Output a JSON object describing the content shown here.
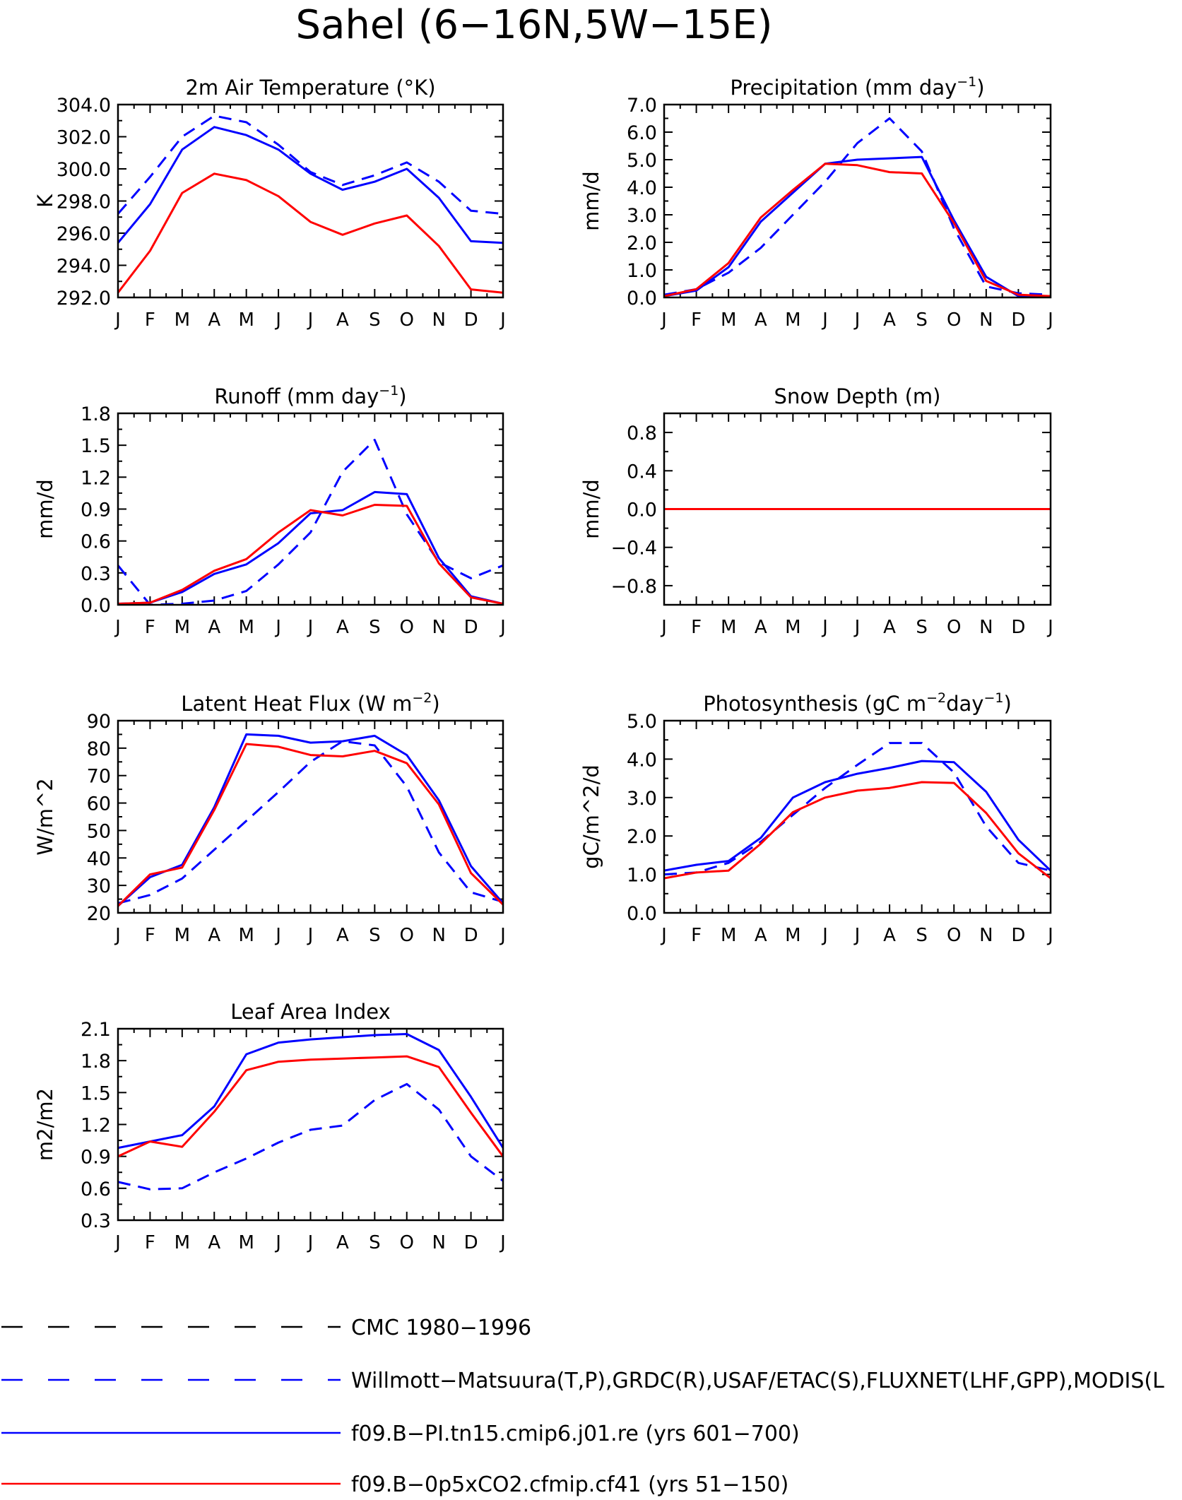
{
  "title": "Sahel (6−16N,5W−15E)",
  "months": [
    "J",
    "F",
    "M",
    "A",
    "M",
    "J",
    "J",
    "A",
    "S",
    "O",
    "N",
    "D",
    "J"
  ],
  "colors": {
    "obs": "#0000ff",
    "cmc": "#000000",
    "pi": "#0000ff",
    "co2": "#ff0000",
    "axis": "#000000"
  },
  "legend": [
    {
      "label": "CMC 1980−1996",
      "color": "#000000",
      "dash": true
    },
    {
      "label": "Willmott−Matsuura(T,P),GRDC(R),USAF/ETAC(S),FLUXNET(LHF,GPP),MODIS(L",
      "color": "#0000ff",
      "dash": true
    },
    {
      "label": "f09.B−PI.tn15.cmip6.j01.re (yrs 601−700)",
      "color": "#0000ff",
      "dash": false
    },
    {
      "label": "f09.B−0p5xCO2.cfmip.cf41 (yrs 51−150)",
      "color": "#ff0000",
      "dash": false
    }
  ],
  "chart_data": [
    {
      "type": "line",
      "title_parts": [
        "2m Air Temperature (°K)"
      ],
      "ylabel": "K",
      "x": [
        "J",
        "F",
        "M",
        "A",
        "M",
        "J",
        "J",
        "A",
        "S",
        "O",
        "N",
        "D",
        "J"
      ],
      "ylim": [
        292,
        304
      ],
      "yticks": [
        "292.0",
        "294.0",
        "296.0",
        "298.0",
        "300.0",
        "302.0",
        "304.0"
      ],
      "ytick_values": [
        292,
        294,
        296,
        298,
        300,
        302,
        304
      ],
      "series": [
        {
          "name": "Willmott−Matsuura(T,P),GRDC(R),USAF/ETAC(S),FLUXNET(LHF,GPP),MODIS(L",
          "color": "#0000ff",
          "dash": true,
          "values": [
            297.2,
            299.5,
            302.0,
            303.3,
            302.9,
            301.5,
            299.8,
            299.0,
            299.6,
            300.4,
            299.2,
            297.4,
            297.2
          ]
        },
        {
          "name": "f09.B−PI.tn15.cmip6.j01.re (yrs 601−700)",
          "color": "#0000ff",
          "dash": false,
          "values": [
            295.4,
            297.8,
            301.2,
            302.6,
            302.1,
            301.2,
            299.7,
            298.7,
            299.2,
            300.0,
            298.2,
            295.5,
            295.4
          ]
        },
        {
          "name": "f09.B−0p5xCO2.cfmip.cf41 (yrs 51−150)",
          "color": "#ff0000",
          "dash": false,
          "values": [
            292.3,
            294.9,
            298.5,
            299.7,
            299.3,
            298.3,
            296.7,
            295.9,
            296.6,
            297.1,
            295.2,
            292.5,
            292.3
          ]
        }
      ]
    },
    {
      "type": "line",
      "title_parts": [
        "Precipitation (mm day",
        "−1",
        ")"
      ],
      "ylabel": "mm/d",
      "x": [
        "J",
        "F",
        "M",
        "A",
        "M",
        "J",
        "J",
        "A",
        "S",
        "O",
        "N",
        "D",
        "J"
      ],
      "ylim": [
        0,
        7
      ],
      "yticks": [
        "0.0",
        "1.0",
        "2.0",
        "3.0",
        "4.0",
        "5.0",
        "6.0",
        "7.0"
      ],
      "ytick_values": [
        0,
        1,
        2,
        3,
        4,
        5,
        6,
        7
      ],
      "series": [
        {
          "name": "Willmott−Matsuura(T,P),GRDC(R),USAF/ETAC(S),FLUXNET(LHF,GPP),MODIS(L",
          "color": "#0000ff",
          "dash": true,
          "values": [
            0.1,
            0.3,
            0.9,
            1.8,
            3.0,
            4.2,
            5.6,
            6.5,
            5.3,
            2.5,
            0.4,
            0.15,
            0.1
          ]
        },
        {
          "name": "f09.B−PI.tn15.cmip6.j01.re (yrs 601−700)",
          "color": "#0000ff",
          "dash": false,
          "values": [
            0.05,
            0.25,
            1.1,
            2.75,
            3.8,
            4.85,
            5.0,
            5.05,
            5.1,
            2.8,
            0.75,
            0.05,
            0.05
          ]
        },
        {
          "name": "f09.B−0p5xCO2.cfmip.cf41 (yrs 51−150)",
          "color": "#ff0000",
          "dash": false,
          "values": [
            0.05,
            0.3,
            1.25,
            2.9,
            3.9,
            4.85,
            4.8,
            4.55,
            4.5,
            2.7,
            0.6,
            0.1,
            0.05
          ]
        }
      ]
    },
    {
      "type": "line",
      "title_parts": [
        "Runoff (mm day",
        "−1",
        ")"
      ],
      "ylabel": "mm/d",
      "x": [
        "J",
        "F",
        "M",
        "A",
        "M",
        "J",
        "J",
        "A",
        "S",
        "O",
        "N",
        "D",
        "J"
      ],
      "ylim": [
        0,
        1.8
      ],
      "yticks": [
        "0.0",
        "0.3",
        "0.6",
        "0.9",
        "1.2",
        "1.5",
        "1.8"
      ],
      "ytick_values": [
        0,
        0.3,
        0.6,
        0.9,
        1.2,
        1.5,
        1.8
      ],
      "series": [
        {
          "name": "Willmott−Matsuura(T,P),GRDC(R),USAF/ETAC(S),FLUXNET(LHF,GPP),MODIS(L",
          "color": "#0000ff",
          "dash": true,
          "values": [
            0.37,
            0.0,
            0.01,
            0.04,
            0.13,
            0.38,
            0.68,
            1.25,
            1.55,
            0.85,
            0.4,
            0.25,
            0.37
          ]
        },
        {
          "name": "f09.B−PI.tn15.cmip6.j01.re (yrs 601−700)",
          "color": "#0000ff",
          "dash": false,
          "values": [
            0.01,
            0.02,
            0.12,
            0.29,
            0.38,
            0.58,
            0.86,
            0.89,
            1.06,
            1.04,
            0.44,
            0.08,
            0.01
          ]
        },
        {
          "name": "f09.B−0p5xCO2.cfmip.cf41 (yrs 51−150)",
          "color": "#ff0000",
          "dash": false,
          "values": [
            0.01,
            0.02,
            0.14,
            0.32,
            0.43,
            0.68,
            0.89,
            0.84,
            0.94,
            0.93,
            0.39,
            0.07,
            0.01
          ]
        }
      ]
    },
    {
      "type": "line",
      "title_parts": [
        "Snow Depth (m)"
      ],
      "ylabel": "mm/d",
      "x": [
        "J",
        "F",
        "M",
        "A",
        "M",
        "J",
        "J",
        "A",
        "S",
        "O",
        "N",
        "D",
        "J"
      ],
      "ylim": [
        -1,
        1
      ],
      "yticks": [
        "−0.8",
        "−0.4",
        "0.0",
        "0.4",
        "0.8"
      ],
      "ytick_values": [
        -0.8,
        -0.4,
        0.0,
        0.4,
        0.8
      ],
      "series": [
        {
          "name": "Willmott−Matsuura(T,P),GRDC(R),USAF/ETAC(S),FLUXNET(LHF,GPP),MODIS(L",
          "color": "#0000ff",
          "dash": true,
          "values": [
            0,
            0,
            0,
            0,
            0,
            0,
            0,
            0,
            0,
            0,
            0,
            0,
            0
          ]
        },
        {
          "name": "f09.B−PI.tn15.cmip6.j01.re (yrs 601−700)",
          "color": "#0000ff",
          "dash": false,
          "values": [
            0,
            0,
            0,
            0,
            0,
            0,
            0,
            0,
            0,
            0,
            0,
            0,
            0
          ]
        },
        {
          "name": "f09.B−0p5xCO2.cfmip.cf41 (yrs 51−150)",
          "color": "#ff0000",
          "dash": false,
          "values": [
            0,
            0,
            0,
            0,
            0,
            0,
            0,
            0,
            0,
            0,
            0,
            0,
            0
          ]
        }
      ]
    },
    {
      "type": "line",
      "title_parts": [
        "Latent Heat Flux (W m",
        "−2",
        ")"
      ],
      "ylabel": "W/m^2",
      "x": [
        "J",
        "F",
        "M",
        "A",
        "M",
        "J",
        "J",
        "A",
        "S",
        "O",
        "N",
        "D",
        "J"
      ],
      "ylim": [
        20,
        90
      ],
      "yticks": [
        "20",
        "30",
        "40",
        "50",
        "60",
        "70",
        "80",
        "90"
      ],
      "ytick_values": [
        20,
        30,
        40,
        50,
        60,
        70,
        80,
        90
      ],
      "series": [
        {
          "name": "Willmott−Matsuura(T,P),GRDC(R),USAF/ETAC(S),FLUXNET(LHF,GPP),MODIS(L",
          "color": "#0000ff",
          "dash": true,
          "values": [
            23.5,
            26.5,
            32.5,
            43.0,
            53.5,
            64.0,
            75.0,
            82.5,
            81.0,
            66.0,
            42.0,
            27.5,
            24.0
          ]
        },
        {
          "name": "f09.B−PI.tn15.cmip6.j01.re (yrs 601−700)",
          "color": "#0000ff",
          "dash": false,
          "values": [
            22.5,
            33.0,
            37.5,
            58.5,
            85.0,
            84.5,
            82.0,
            82.5,
            84.5,
            77.5,
            61.0,
            37.0,
            23.5
          ]
        },
        {
          "name": "f09.B−0p5xCO2.cfmip.cf41 (yrs 51−150)",
          "color": "#ff0000",
          "dash": false,
          "values": [
            22.5,
            34.0,
            36.5,
            57.5,
            81.5,
            80.5,
            77.5,
            77.0,
            79.0,
            74.5,
            59.5,
            34.5,
            23.0
          ]
        }
      ]
    },
    {
      "type": "line",
      "title_parts": [
        "Photosynthesis (gC m",
        "−2",
        "day",
        "−1",
        ")"
      ],
      "ylabel": "gC/m^2/d",
      "x": [
        "J",
        "F",
        "M",
        "A",
        "M",
        "J",
        "J",
        "A",
        "S",
        "O",
        "N",
        "D",
        "J"
      ],
      "ylim": [
        0,
        5
      ],
      "yticks": [
        "0.0",
        "1.0",
        "2.0",
        "3.0",
        "4.0",
        "5.0"
      ],
      "ytick_values": [
        0,
        1,
        2,
        3,
        4,
        5
      ],
      "series": [
        {
          "name": "Willmott−Matsuura(T,P),GRDC(R),USAF/ETAC(S),FLUXNET(LHF,GPP),MODIS(L",
          "color": "#0000ff",
          "dash": true,
          "values": [
            1.0,
            1.05,
            1.3,
            1.85,
            2.55,
            3.25,
            3.85,
            4.42,
            4.42,
            3.65,
            2.25,
            1.3,
            1.1
          ]
        },
        {
          "name": "f09.B−PI.tn15.cmip6.j01.re (yrs 601−700)",
          "color": "#0000ff",
          "dash": false,
          "values": [
            1.1,
            1.25,
            1.35,
            1.95,
            3.0,
            3.4,
            3.62,
            3.77,
            3.95,
            3.92,
            3.15,
            1.9,
            1.1
          ]
        },
        {
          "name": "f09.B−0p5xCO2.cfmip.cf41 (yrs 51−150)",
          "color": "#ff0000",
          "dash": false,
          "values": [
            0.9,
            1.05,
            1.1,
            1.8,
            2.62,
            3.0,
            3.18,
            3.25,
            3.4,
            3.38,
            2.6,
            1.55,
            0.9
          ]
        }
      ]
    },
    {
      "type": "line",
      "title_parts": [
        "Leaf Area Index"
      ],
      "ylabel": "m2/m2",
      "x": [
        "J",
        "F",
        "M",
        "A",
        "M",
        "J",
        "J",
        "A",
        "S",
        "O",
        "N",
        "D",
        "J"
      ],
      "ylim": [
        0.3,
        2.1
      ],
      "yticks": [
        "0.3",
        "0.6",
        "0.9",
        "1.2",
        "1.5",
        "1.8",
        "2.1"
      ],
      "ytick_values": [
        0.3,
        0.6,
        0.9,
        1.2,
        1.5,
        1.8,
        2.1
      ],
      "series": [
        {
          "name": "Willmott−Matsuura(T,P),GRDC(R),USAF/ETAC(S),FLUXNET(LHF,GPP),MODIS(L",
          "color": "#0000ff",
          "dash": true,
          "values": [
            0.66,
            0.59,
            0.6,
            0.75,
            0.88,
            1.03,
            1.15,
            1.19,
            1.43,
            1.58,
            1.34,
            0.9,
            0.67
          ]
        },
        {
          "name": "f09.B−PI.tn15.cmip6.j01.re (yrs 601−700)",
          "color": "#0000ff",
          "dash": false,
          "values": [
            0.98,
            1.04,
            1.1,
            1.37,
            1.86,
            1.97,
            2.0,
            2.02,
            2.04,
            2.05,
            1.9,
            1.46,
            0.98
          ]
        },
        {
          "name": "f09.B−0p5xCO2.cfmip.cf41 (yrs 51−150)",
          "color": "#ff0000",
          "dash": false,
          "values": [
            0.9,
            1.04,
            0.99,
            1.32,
            1.71,
            1.79,
            1.81,
            1.82,
            1.83,
            1.84,
            1.74,
            1.31,
            0.9
          ]
        }
      ]
    }
  ]
}
